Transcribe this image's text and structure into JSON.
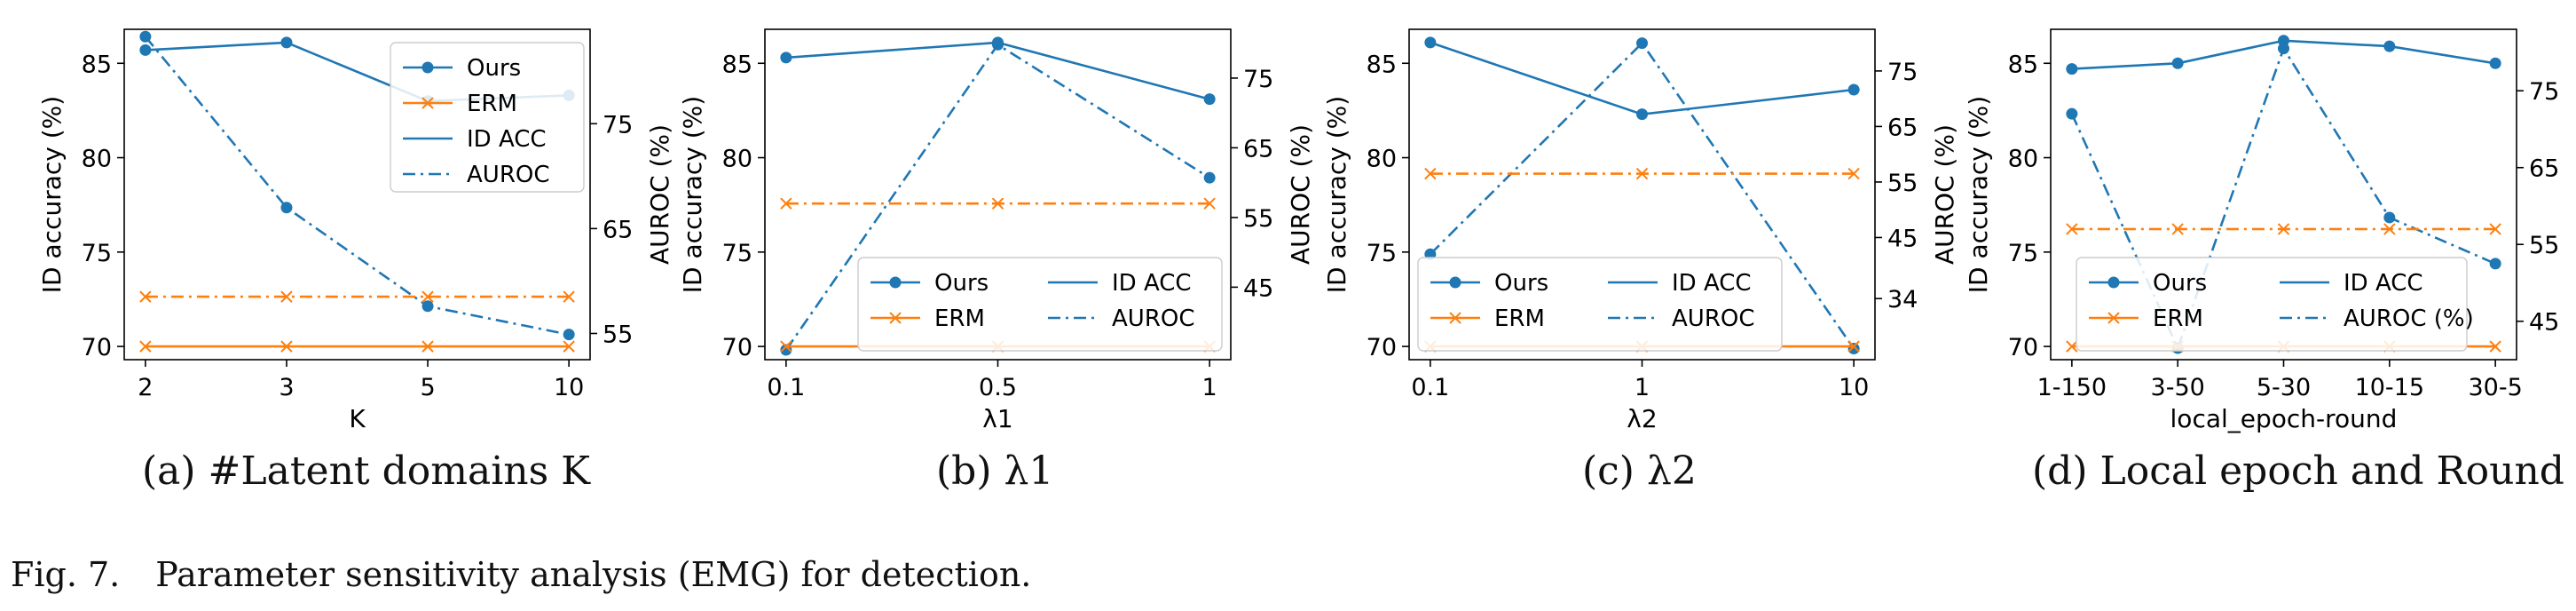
{
  "figure": {
    "label": "Fig. 7.",
    "caption": "Parameter sensitivity analysis (EMG) for detection."
  },
  "colors": {
    "ours": "#1f77b4",
    "erm": "#ff7f0e",
    "axis": "#000000"
  },
  "chart_data": [
    {
      "type": "line",
      "subcaption": "(a) #Latent domains K",
      "xlabel": "K",
      "ylabel_left": "ID accuracy (%)",
      "ylabel_right": "AUROC (%)",
      "categories": [
        "2",
        "3",
        "5",
        "10"
      ],
      "ylim_left": [
        69.3,
        86.8
      ],
      "yticks_left": [
        "70",
        "75",
        "80",
        "85"
      ],
      "ylim_right": [
        52.5,
        84.0
      ],
      "yticks_right": [
        "55",
        "65",
        "75"
      ],
      "series": [
        {
          "name": "Ours",
          "metric": "ID ACC",
          "axis": "left",
          "values": [
            85.7,
            86.1,
            83.0,
            83.3
          ]
        },
        {
          "name": "Ours",
          "metric": "AUROC",
          "axis": "right",
          "values": [
            83.3,
            67.0,
            57.6,
            54.9
          ]
        },
        {
          "name": "ERM",
          "metric": "ID ACC",
          "axis": "left",
          "values": [
            70.0,
            70.0,
            70.0,
            70.0
          ]
        },
        {
          "name": "ERM",
          "metric": "AUROC",
          "axis": "right",
          "values": [
            58.5,
            58.5,
            58.5,
            58.5
          ]
        }
      ],
      "legend": {
        "position": "upper-right",
        "columns": 1,
        "entries": [
          "Ours",
          "ERM",
          "ID ACC",
          "AUROC"
        ]
      }
    },
    {
      "type": "line",
      "subcaption": "(b) λ1",
      "xlabel": "λ1",
      "ylabel_left": "ID accuracy (%)",
      "ylabel_right": "AUROC (%)",
      "categories": [
        "0.1",
        "0.5",
        "1"
      ],
      "ylim_left": [
        69.3,
        86.8
      ],
      "yticks_left": [
        "70",
        "75",
        "80",
        "85"
      ],
      "ylim_right": [
        34.6,
        82.0
      ],
      "yticks_right": [
        "45",
        "55",
        "65",
        "75"
      ],
      "series": [
        {
          "name": "Ours",
          "metric": "ID ACC",
          "axis": "left",
          "values": [
            85.3,
            86.1,
            83.1
          ]
        },
        {
          "name": "Ours",
          "metric": "AUROC",
          "axis": "right",
          "values": [
            36.0,
            79.8,
            60.7
          ]
        },
        {
          "name": "ERM",
          "metric": "ID ACC",
          "axis": "left",
          "values": [
            70.0,
            70.0,
            70.0
          ]
        },
        {
          "name": "ERM",
          "metric": "AUROC",
          "axis": "right",
          "values": [
            57.0,
            57.0,
            57.0
          ]
        }
      ],
      "legend": {
        "position": "lower-right",
        "columns": 2,
        "entries": [
          "Ours",
          "ID ACC",
          "ERM",
          "AUROC"
        ]
      }
    },
    {
      "type": "line",
      "subcaption": "(c) λ2",
      "xlabel": "λ2",
      "ylabel_left": "ID accuracy (%)",
      "ylabel_right": "AUROC (%)",
      "categories": [
        "0.1",
        "1",
        "10"
      ],
      "ylim_left": [
        69.3,
        86.8
      ],
      "yticks_left": [
        "70",
        "75",
        "80",
        "85"
      ],
      "ylim_right": [
        23.0,
        82.5
      ],
      "yticks_right": [
        "34",
        "45",
        "55",
        "65",
        "75"
      ],
      "series": [
        {
          "name": "Ours",
          "metric": "ID ACC",
          "axis": "left",
          "values": [
            86.1,
            82.3,
            83.6
          ]
        },
        {
          "name": "Ours",
          "metric": "AUROC",
          "axis": "right",
          "values": [
            42.0,
            80.0,
            25.0
          ]
        },
        {
          "name": "ERM",
          "metric": "ID ACC",
          "axis": "left",
          "values": [
            70.0,
            70.0,
            70.0
          ]
        },
        {
          "name": "ERM",
          "metric": "AUROC",
          "axis": "right",
          "values": [
            56.5,
            56.5,
            56.5
          ]
        }
      ],
      "legend": {
        "position": "lower-left",
        "columns": 2,
        "entries": [
          "Ours",
          "ID ACC",
          "ERM",
          "AUROC"
        ]
      }
    },
    {
      "type": "line",
      "subcaption": "(d) Local epoch and Round",
      "xlabel": "local_epoch-round",
      "ylabel_left": "ID accuracy (%)",
      "ylabel_right": "AUROC (%)",
      "categories": [
        "1-150",
        "3-50",
        "5-30",
        "10-15",
        "30-5"
      ],
      "ylim_left": [
        69.3,
        86.8
      ],
      "yticks_left": [
        "70",
        "75",
        "80",
        "85"
      ],
      "ylim_right": [
        40.0,
        83.0
      ],
      "yticks_right": [
        "45",
        "55",
        "65",
        "75"
      ],
      "series": [
        {
          "name": "Ours",
          "metric": "ID ACC",
          "axis": "left",
          "values": [
            84.7,
            85.0,
            86.2,
            85.9,
            85.0
          ]
        },
        {
          "name": "Ours",
          "metric": "AUROC",
          "axis": "right",
          "values": [
            72.0,
            41.5,
            80.5,
            58.5,
            52.5
          ]
        },
        {
          "name": "ERM",
          "metric": "ID ACC",
          "axis": "left",
          "values": [
            70.0,
            70.0,
            70.0,
            70.0,
            70.0
          ]
        },
        {
          "name": "ERM",
          "metric": "AUROC",
          "axis": "right",
          "values": [
            57.0,
            57.0,
            57.0,
            57.0,
            57.0
          ]
        }
      ],
      "legend": {
        "position": "lower-center",
        "columns": 2,
        "entries": [
          "Ours",
          "ID ACC",
          "ERM",
          "AUROC (%)"
        ]
      }
    }
  ]
}
